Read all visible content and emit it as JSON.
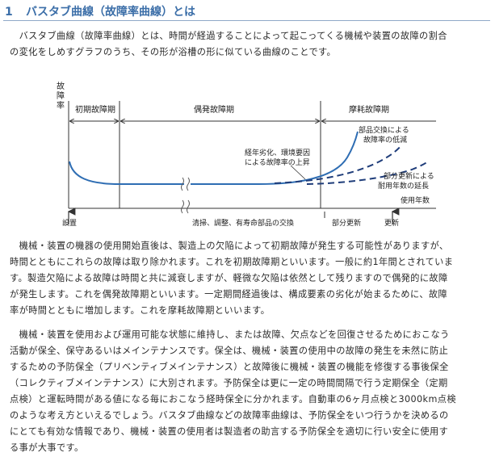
{
  "heading": {
    "number": "1",
    "title": "バスタブ曲線（故障率曲線）とは"
  },
  "intro": {
    "lines": [
      "　バスタブ曲線（故障率曲線）とは、時間が経過することによって起こってくる機械や装置の故障の割合",
      "の変化をしめすグラフのうち、その形が浴槽の形に似ている曲線のことです。"
    ]
  },
  "figure": {
    "y_axis_label": [
      "故",
      "障",
      "率"
    ],
    "phases": {
      "early": "初期故障期",
      "random": "偶発故障期",
      "wearout": "摩耗故障期"
    },
    "annotations": {
      "degradation": [
        "経年劣化、環境要因",
        "による故障率の上昇"
      ],
      "parts_replacement": [
        "部品交換による",
        "故障率の低減"
      ],
      "partial_update": [
        "部分更新による",
        "耐用年数の延長"
      ]
    },
    "x_axis_label": "使用年数",
    "bottom_labels": {
      "install": "設置",
      "maintenance": "清掃、調整、有寿命部品の交換",
      "partial_update": "部分更新",
      "renewal": "更新"
    },
    "colors": {
      "curve": "#2e6db3",
      "dashed": "#1f3d7a",
      "axis": "#333333"
    }
  },
  "body": {
    "paragraph2": [
      "　機械・装置の機器の使用開始直後は、製造上の欠陥によって初期故障が発生する可能性がありますが、",
      "時間とともにこれらの故障は取り除かれます。これを初期故障期といいます。一般に約1年間とされていま",
      "す。製造欠陥による故障は時間と共に減衰しますが、軽微な欠陥は依然として残りますので偶発的に故障",
      "が発生します。これを偶発故障期といいます。一定期間経過後は、構成要素の劣化が始まるために、故障",
      "率が時間とともに増加します。これを摩耗故障期といいます。"
    ],
    "paragraph3": [
      "　機械・装置を使用および運用可能な状態に維持し、または故障、欠点などを回復させるためにおこなう",
      "活動が保全、保守あるいはメインテナンスです。保全は、機械・装置の使用中の故障の発生を未然に防止",
      "するための予防保全（プリベンティブメインテナンス）と故障後に機械・装置の機能を修復する事後保全",
      "（コレクティブメインテナンス）に大別されます。予防保全は更に一定の時間間隔で行う定期保全（定期",
      "点検）と運転時間がある値になる毎におこなう経時保全に分かれます。自動車の6ヶ月点検と3000km点検",
      "のような考え方といえるでしょう。バスタブ曲線などの故障率曲線は、予防保全をいつ行うかを決めるの",
      "にとても有効な情報であり、機械・装置の使用者は製造者の助言する予防保全を適切に行い安全に使用す",
      "る事が大事です。"
    ]
  }
}
